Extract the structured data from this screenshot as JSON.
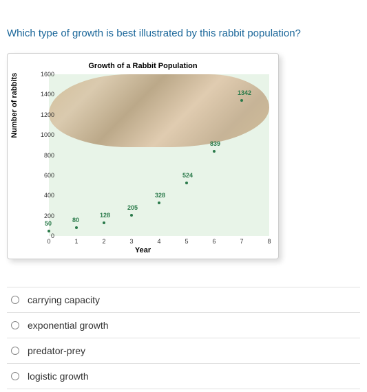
{
  "question": {
    "text": "Which type of growth is best illustrated by this rabbit population?"
  },
  "chart": {
    "type": "scatter",
    "title": "Growth of a Rabbit Population",
    "xlabel": "Year",
    "ylabel": "Number of rabbits",
    "ylim": [
      0,
      1600
    ],
    "ytick_step": 200,
    "xlim": [
      0,
      8
    ],
    "xtick_step": 1,
    "y_ticks": [
      "0",
      "200",
      "400",
      "600",
      "800",
      "1000",
      "1200",
      "1400",
      "1600"
    ],
    "x_ticks": [
      "0",
      "1",
      "2",
      "3",
      "4",
      "5",
      "6",
      "7",
      "8"
    ],
    "data_points": [
      {
        "x": 0,
        "y": 50,
        "label": "50"
      },
      {
        "x": 1,
        "y": 80,
        "label": "80"
      },
      {
        "x": 2,
        "y": 128,
        "label": "128"
      },
      {
        "x": 3,
        "y": 205,
        "label": "205"
      },
      {
        "x": 4,
        "y": 328,
        "label": "328"
      },
      {
        "x": 5,
        "y": 524,
        "label": "524"
      },
      {
        "x": 6,
        "y": 839,
        "label": "839"
      },
      {
        "x": 7,
        "y": 1342,
        "label": "1342"
      }
    ],
    "background_color": "#e8f4e8",
    "point_color": "#2a7a4a",
    "label_color": "#2a7a4a",
    "title_fontsize": 11,
    "label_fontsize": 11,
    "tick_fontsize": 9,
    "data_label_fontsize": 9
  },
  "answers": {
    "options": [
      {
        "label": "carrying capacity"
      },
      {
        "label": "exponential growth"
      },
      {
        "label": "predator-prey"
      },
      {
        "label": "logistic growth"
      }
    ]
  }
}
